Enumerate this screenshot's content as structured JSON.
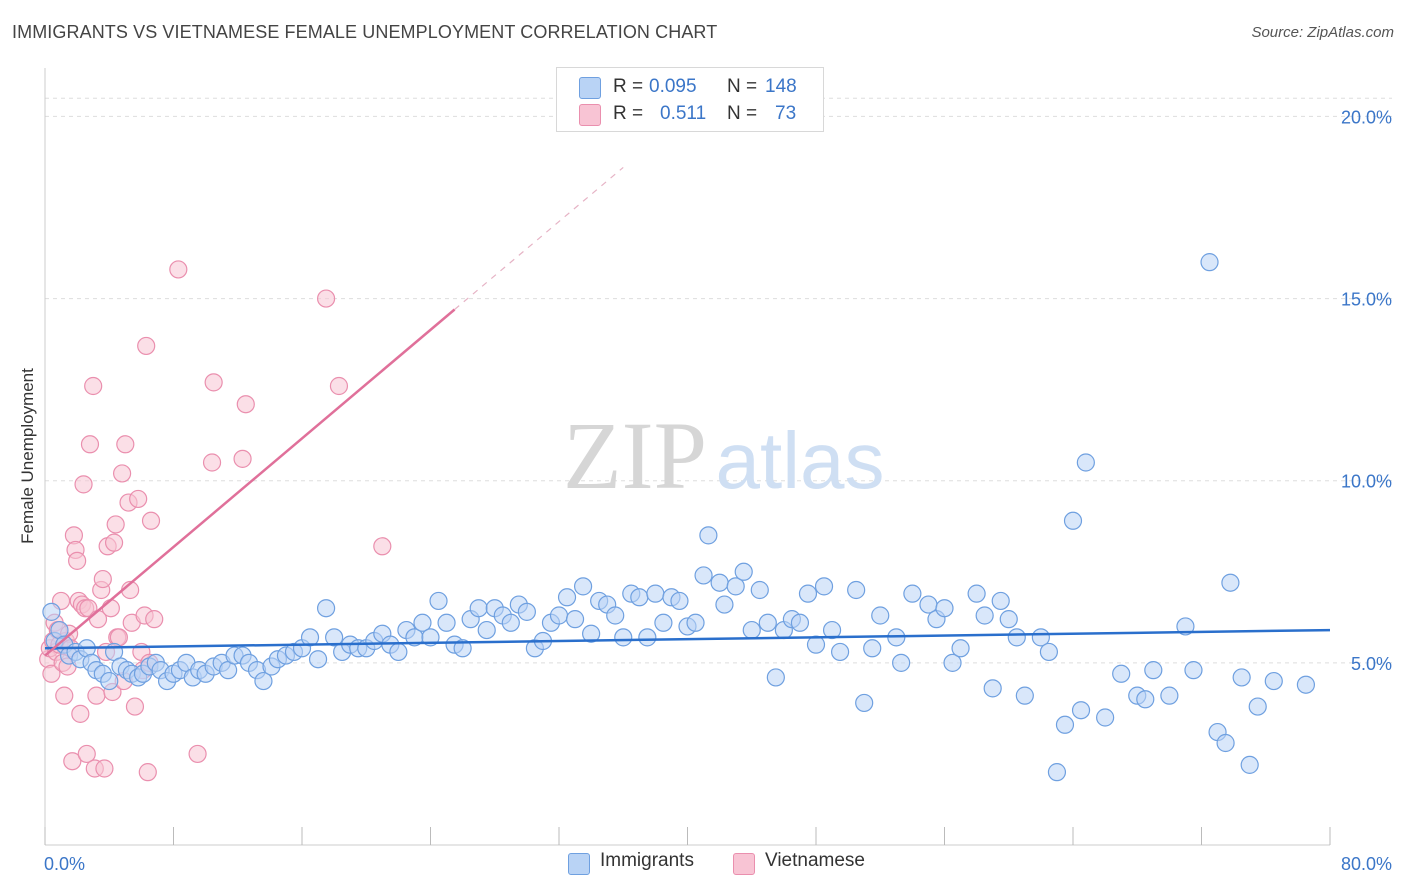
{
  "title": "IMMIGRANTS VS VIETNAMESE FEMALE UNEMPLOYMENT CORRELATION CHART",
  "source": "Source: ZipAtlas.com",
  "watermark": {
    "zip": "ZIP",
    "atlas": "atlas"
  },
  "legend": {
    "immigrants": {
      "r_label": "R =",
      "r_value": "0.095",
      "n_label": "N =",
      "n_value": "148"
    },
    "vietnamese": {
      "r_label": "R =",
      "r_value": "0.511",
      "n_label": "N =",
      "n_value": "73"
    }
  },
  "colors": {
    "immigrants_fill": "#b9d3f5",
    "immigrants_stroke": "#6fa0e0",
    "immigrants_line": "#2a6fcc",
    "vietnamese_fill": "#f8c4d4",
    "vietnamese_stroke": "#ea8fae",
    "vietnamese_line": "#e0709a",
    "axis_text": "#3b76c8",
    "grid": "#dddddd"
  },
  "chart_data": {
    "type": "scatter",
    "title": "IMMIGRANTS VS VIETNAMESE FEMALE UNEMPLOYMENT CORRELATION CHART",
    "xlabel": "",
    "ylabel": "Female Unemployment",
    "xlim": [
      0,
      80
    ],
    "ylim": [
      0,
      21
    ],
    "x_tick_labels": [
      {
        "value": 0,
        "label": "0.0%"
      },
      {
        "value": 80,
        "label": "80.0%"
      }
    ],
    "y_tick_labels": [
      {
        "value": 5,
        "label": "5.0%"
      },
      {
        "value": 10,
        "label": "10.0%"
      },
      {
        "value": 15,
        "label": "15.0%"
      },
      {
        "value": 20,
        "label": "20.0%"
      }
    ],
    "grid": true,
    "legend_position": "top-center",
    "series": [
      {
        "name": "Immigrants",
        "trend": {
          "x": [
            0,
            80
          ],
          "y": [
            5.4,
            5.9
          ],
          "dashed_to": null
        },
        "points": [
          [
            0.4,
            6.4
          ],
          [
            0.6,
            5.6
          ],
          [
            0.9,
            5.9
          ],
          [
            1.2,
            5.5
          ],
          [
            1.5,
            5.2
          ],
          [
            1.9,
            5.3
          ],
          [
            2.2,
            5.1
          ],
          [
            2.6,
            5.4
          ],
          [
            2.9,
            5.0
          ],
          [
            3.2,
            4.8
          ],
          [
            3.6,
            4.7
          ],
          [
            4.0,
            4.5
          ],
          [
            4.3,
            5.3
          ],
          [
            4.7,
            4.9
          ],
          [
            5.1,
            4.8
          ],
          [
            5.4,
            4.7
          ],
          [
            5.8,
            4.6
          ],
          [
            6.1,
            4.7
          ],
          [
            6.5,
            4.9
          ],
          [
            6.9,
            5.0
          ],
          [
            7.2,
            4.8
          ],
          [
            7.6,
            4.5
          ],
          [
            8.0,
            4.7
          ],
          [
            8.4,
            4.8
          ],
          [
            8.8,
            5.0
          ],
          [
            9.2,
            4.6
          ],
          [
            9.6,
            4.8
          ],
          [
            10.0,
            4.7
          ],
          [
            10.5,
            4.9
          ],
          [
            11.0,
            5.0
          ],
          [
            11.4,
            4.8
          ],
          [
            11.8,
            5.2
          ],
          [
            12.3,
            5.2
          ],
          [
            12.7,
            5.0
          ],
          [
            13.2,
            4.8
          ],
          [
            13.6,
            4.5
          ],
          [
            14.1,
            4.9
          ],
          [
            14.5,
            5.1
          ],
          [
            15.0,
            5.2
          ],
          [
            15.5,
            5.3
          ],
          [
            16.0,
            5.4
          ],
          [
            16.5,
            5.7
          ],
          [
            17.0,
            5.1
          ],
          [
            17.5,
            6.5
          ],
          [
            18.0,
            5.7
          ],
          [
            18.5,
            5.3
          ],
          [
            19.0,
            5.5
          ],
          [
            19.5,
            5.4
          ],
          [
            20.0,
            5.4
          ],
          [
            20.5,
            5.6
          ],
          [
            21.0,
            5.8
          ],
          [
            21.5,
            5.5
          ],
          [
            22.0,
            5.3
          ],
          [
            22.5,
            5.9
          ],
          [
            23.0,
            5.7
          ],
          [
            23.5,
            6.1
          ],
          [
            24.0,
            5.7
          ],
          [
            24.5,
            6.7
          ],
          [
            25.0,
            6.1
          ],
          [
            25.5,
            5.5
          ],
          [
            26.0,
            5.4
          ],
          [
            26.5,
            6.2
          ],
          [
            27.0,
            6.5
          ],
          [
            27.5,
            5.9
          ],
          [
            28.0,
            6.5
          ],
          [
            28.5,
            6.3
          ],
          [
            29.0,
            6.1
          ],
          [
            29.5,
            6.6
          ],
          [
            30.0,
            6.4
          ],
          [
            30.5,
            5.4
          ],
          [
            31.0,
            5.6
          ],
          [
            31.5,
            6.1
          ],
          [
            32.0,
            6.3
          ],
          [
            32.5,
            6.8
          ],
          [
            33.0,
            6.2
          ],
          [
            33.5,
            7.1
          ],
          [
            34.0,
            5.8
          ],
          [
            34.5,
            6.7
          ],
          [
            35.0,
            6.6
          ],
          [
            35.5,
            6.3
          ],
          [
            36.0,
            5.7
          ],
          [
            36.5,
            6.9
          ],
          [
            37.0,
            6.8
          ],
          [
            37.5,
            5.7
          ],
          [
            38.0,
            6.9
          ],
          [
            38.5,
            6.1
          ],
          [
            39.0,
            6.8
          ],
          [
            39.5,
            6.7
          ],
          [
            40.0,
            6.0
          ],
          [
            40.5,
            6.1
          ],
          [
            41.0,
            7.4
          ],
          [
            41.3,
            8.5
          ],
          [
            42.0,
            7.2
          ],
          [
            42.3,
            6.6
          ],
          [
            43.0,
            7.1
          ],
          [
            43.5,
            7.5
          ],
          [
            44.0,
            5.9
          ],
          [
            44.5,
            7.0
          ],
          [
            45.0,
            6.1
          ],
          [
            45.5,
            4.6
          ],
          [
            46.0,
            5.9
          ],
          [
            46.5,
            6.2
          ],
          [
            47.0,
            6.1
          ],
          [
            47.5,
            6.9
          ],
          [
            48.0,
            5.5
          ],
          [
            48.5,
            7.1
          ],
          [
            49.0,
            5.9
          ],
          [
            49.5,
            5.3
          ],
          [
            50.5,
            7.0
          ],
          [
            51.0,
            3.9
          ],
          [
            51.5,
            5.4
          ],
          [
            52.0,
            6.3
          ],
          [
            53.0,
            5.7
          ],
          [
            53.3,
            5.0
          ],
          [
            54.0,
            6.9
          ],
          [
            55.0,
            6.6
          ],
          [
            55.5,
            6.2
          ],
          [
            56.0,
            6.5
          ],
          [
            56.5,
            5.0
          ],
          [
            57.0,
            5.4
          ],
          [
            58.0,
            6.9
          ],
          [
            58.5,
            6.3
          ],
          [
            59.0,
            4.3
          ],
          [
            59.5,
            6.7
          ],
          [
            60.0,
            6.2
          ],
          [
            60.5,
            5.7
          ],
          [
            61.0,
            4.1
          ],
          [
            62.0,
            5.7
          ],
          [
            62.5,
            5.3
          ],
          [
            63.0,
            2.0
          ],
          [
            63.5,
            3.3
          ],
          [
            64.0,
            8.9
          ],
          [
            64.5,
            3.7
          ],
          [
            64.8,
            10.5
          ],
          [
            66.0,
            3.5
          ],
          [
            67.0,
            4.7
          ],
          [
            68.0,
            4.1
          ],
          [
            68.5,
            4.0
          ],
          [
            69.0,
            4.8
          ],
          [
            70.0,
            4.1
          ],
          [
            71.0,
            6.0
          ],
          [
            71.5,
            4.8
          ],
          [
            72.5,
            16.0
          ],
          [
            73.0,
            3.1
          ],
          [
            73.5,
            2.8
          ],
          [
            73.8,
            7.2
          ],
          [
            74.5,
            4.6
          ],
          [
            75.0,
            2.2
          ],
          [
            75.5,
            3.8
          ],
          [
            76.5,
            4.5
          ],
          [
            78.5,
            4.4
          ]
        ]
      },
      {
        "name": "Vietnamese",
        "trend": {
          "x": [
            0,
            25.5
          ],
          "y": [
            5.2,
            14.7
          ],
          "dashed_to": [
            36,
            18.6
          ]
        },
        "points": [
          [
            0.2,
            5.1
          ],
          [
            0.3,
            5.4
          ],
          [
            0.4,
            4.7
          ],
          [
            0.5,
            5.6
          ],
          [
            0.6,
            6.1
          ],
          [
            0.7,
            5.3
          ],
          [
            0.8,
            5.9
          ],
          [
            0.9,
            5.5
          ],
          [
            1.0,
            6.7
          ],
          [
            1.1,
            5.0
          ],
          [
            1.2,
            4.1
          ],
          [
            1.3,
            5.6
          ],
          [
            1.4,
            4.9
          ],
          [
            1.5,
            5.8
          ],
          [
            1.6,
            5.4
          ],
          [
            1.7,
            2.3
          ],
          [
            1.8,
            8.5
          ],
          [
            1.9,
            8.1
          ],
          [
            2.0,
            7.8
          ],
          [
            2.1,
            6.7
          ],
          [
            2.2,
            3.6
          ],
          [
            2.3,
            6.6
          ],
          [
            2.4,
            9.9
          ],
          [
            2.5,
            6.5
          ],
          [
            2.6,
            2.5
          ],
          [
            2.7,
            6.5
          ],
          [
            2.8,
            11.0
          ],
          [
            3.0,
            12.6
          ],
          [
            3.1,
            2.1
          ],
          [
            3.2,
            4.1
          ],
          [
            3.3,
            6.2
          ],
          [
            3.5,
            7.0
          ],
          [
            3.6,
            7.3
          ],
          [
            3.7,
            2.1
          ],
          [
            3.8,
            5.3
          ],
          [
            3.9,
            8.2
          ],
          [
            4.1,
            6.5
          ],
          [
            4.2,
            4.2
          ],
          [
            4.3,
            8.3
          ],
          [
            4.4,
            8.8
          ],
          [
            4.5,
            5.7
          ],
          [
            4.6,
            5.7
          ],
          [
            4.8,
            10.2
          ],
          [
            4.9,
            4.5
          ],
          [
            5.0,
            11.0
          ],
          [
            5.2,
            9.4
          ],
          [
            5.3,
            7.0
          ],
          [
            5.4,
            6.1
          ],
          [
            5.6,
            3.8
          ],
          [
            5.8,
            9.5
          ],
          [
            6.0,
            5.3
          ],
          [
            6.1,
            4.8
          ],
          [
            6.2,
            6.3
          ],
          [
            6.3,
            13.7
          ],
          [
            6.4,
            2.0
          ],
          [
            6.5,
            5.0
          ],
          [
            6.6,
            8.9
          ],
          [
            6.8,
            6.2
          ],
          [
            8.3,
            15.8
          ],
          [
            9.5,
            2.5
          ],
          [
            10.4,
            10.5
          ],
          [
            10.5,
            12.7
          ],
          [
            12.5,
            12.1
          ],
          [
            12.3,
            10.6
          ],
          [
            17.5,
            15.0
          ],
          [
            18.3,
            12.6
          ],
          [
            21.0,
            8.2
          ]
        ]
      }
    ]
  },
  "axis_labels": {
    "ylabel": "Female Unemployment",
    "x_left": "0.0%",
    "x_right": "80.0%"
  },
  "bottom_legend": {
    "immigrants": "Immigrants",
    "vietnamese": "Vietnamese"
  }
}
